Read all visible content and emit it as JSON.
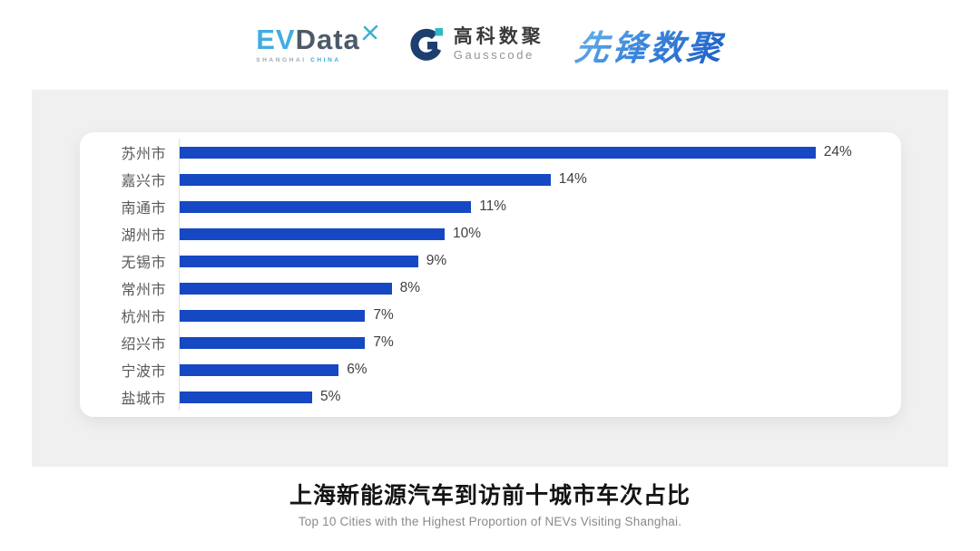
{
  "header": {
    "evdata": {
      "ev": "EV",
      "data": "Data",
      "sub_shanghai": "SHANGHAI",
      "sub_china": "CHINA"
    },
    "gausscode": {
      "cn": "高科数聚",
      "en": "Gausscode"
    },
    "pioneer": {
      "text": "先锋数聚"
    }
  },
  "chart_data": {
    "type": "bar",
    "orientation": "horizontal",
    "categories": [
      "苏州市",
      "嘉兴市",
      "南通市",
      "湖州市",
      "无锡市",
      "常州市",
      "杭州市",
      "绍兴市",
      "宁波市",
      "盐城市"
    ],
    "values": [
      24,
      14,
      11,
      10,
      9,
      8,
      7,
      7,
      6,
      5
    ],
    "value_labels": [
      "24%",
      "14%",
      "11%",
      "10%",
      "9%",
      "8%",
      "7%",
      "7%",
      "6%",
      "5%"
    ],
    "title": "上海新能源汽车到访前十城市车次占比",
    "subtitle": "Top 10 Cities with the Highest Proportion of  NEVs Visiting Shanghai.",
    "xlim": [
      0,
      25
    ],
    "bar_color": "#1548c2",
    "grid": false,
    "legend": false
  }
}
